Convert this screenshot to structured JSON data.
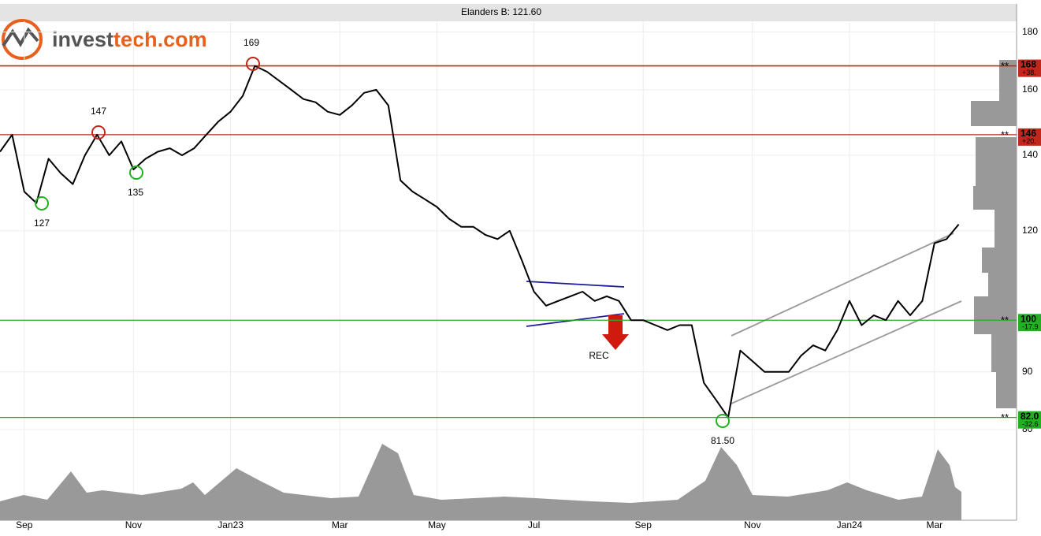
{
  "logo": {
    "prefix": "invest",
    "suffix": "tech.com"
  },
  "chart_data": {
    "type": "line",
    "title": "Elanders B: 121.60",
    "categories": [
      null,
      null,
      "Sep",
      null,
      null,
      null,
      null,
      null,
      null,
      null,
      null,
      "Nov",
      null,
      null,
      null,
      null,
      null,
      null,
      null,
      "Jan23",
      null,
      null,
      null,
      null,
      null,
      null,
      null,
      null,
      "Mar",
      null,
      null,
      null,
      null,
      null,
      null,
      null,
      "May",
      null,
      null,
      null,
      null,
      null,
      null,
      null,
      "Jul",
      null,
      null,
      null,
      null,
      null,
      null,
      null,
      null,
      "Sep",
      null,
      null,
      null,
      null,
      null,
      null,
      null,
      null,
      "Nov",
      null,
      null,
      null,
      null,
      null,
      null,
      null,
      "Jan24",
      null,
      null,
      null,
      null,
      null,
      null,
      "Mar",
      null,
      null
    ],
    "values": [
      141,
      146,
      130,
      127,
      139,
      135,
      132,
      140,
      146,
      140,
      144,
      136,
      139,
      141,
      142,
      140,
      142,
      146,
      150,
      153,
      158,
      168,
      166,
      163,
      160,
      157,
      156,
      153,
      152,
      155,
      159,
      160,
      155,
      133,
      130,
      128,
      126,
      123,
      121,
      121,
      119,
      118,
      120,
      113,
      106,
      103,
      104,
      105,
      106,
      104,
      105,
      104,
      100,
      100,
      99,
      98,
      99,
      99,
      88,
      85,
      82,
      94,
      92,
      90,
      90,
      90,
      93,
      95,
      94,
      98,
      104,
      99,
      101,
      100,
      104,
      101,
      104,
      117,
      118,
      121.6
    ],
    "color": "#000000",
    "log": true,
    "ylim": [
      80,
      184
    ],
    "yticks": [
      80,
      90,
      120,
      140,
      160,
      180
    ],
    "grid": true,
    "marker": "**",
    "levels": [
      {
        "value": 168,
        "change": "+38.",
        "color": "#c0281b"
      },
      {
        "value": 146,
        "change": "+20.",
        "color": "#c0281b"
      },
      {
        "value": 100,
        "change": "-17.9",
        "color": "#22b022"
      },
      {
        "value": 82,
        "label": "82.0",
        "change": "-32.6",
        "color": "#22b022"
      }
    ],
    "annotations": [
      "169",
      "147",
      "135",
      "127",
      "81.50",
      "REC"
    ]
  }
}
